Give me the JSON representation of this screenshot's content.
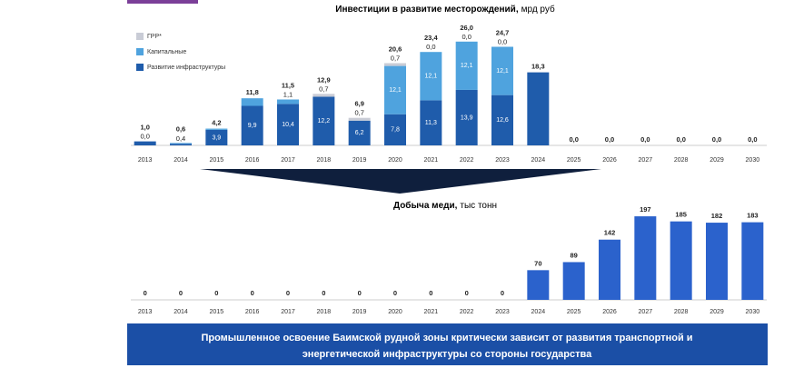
{
  "chart_data": [
    {
      "type": "bar",
      "stacked": true,
      "title": "Инвестиции в развитие  месторождений,",
      "units": "мрд руб",
      "categories": [
        "2013",
        "2014",
        "2015",
        "2016",
        "2017",
        "2018",
        "2019",
        "2020",
        "2021",
        "2022",
        "2023",
        "2024",
        "2025",
        "2026",
        "2027",
        "2028",
        "2029",
        "2030"
      ],
      "ylim": [
        0,
        28
      ],
      "series": [
        {
          "name": "Развитие инфраструктуры",
          "color": "#1f5cab",
          "values": [
            1.0,
            0.4,
            3.9,
            9.9,
            10.4,
            12.2,
            6.2,
            7.8,
            11.3,
            13.9,
            12.6,
            18.3,
            0,
            0,
            0,
            0,
            0,
            0
          ],
          "value_labels": [
            null,
            "0,4",
            "3,9",
            "9,9",
            "10,4",
            "12,2",
            "6,2",
            "7,8",
            "11,3",
            "13,9",
            "12,6",
            null,
            null,
            null,
            null,
            null,
            null,
            null
          ]
        },
        {
          "name": "Капитальные",
          "color": "#4fa3de",
          "values": [
            0,
            0.2,
            0.3,
            1.9,
            1.1,
            0,
            0,
            12.1,
            12.1,
            12.1,
            12.1,
            0,
            0,
            0,
            0,
            0,
            0,
            0
          ],
          "value_labels": [
            null,
            null,
            null,
            null,
            "1,1",
            null,
            null,
            "12,1",
            "12,1",
            "12,1",
            "12,1",
            null,
            null,
            null,
            null,
            null,
            null,
            null
          ]
        },
        {
          "name": "ГРР*",
          "color": "#c9ccd6",
          "values": [
            0,
            0,
            0,
            0,
            0,
            0.7,
            0.7,
            0.7,
            0,
            0,
            0,
            0,
            0,
            0,
            0,
            0,
            0,
            0
          ],
          "value_labels": [
            "0,0",
            null,
            null,
            null,
            null,
            "0,7",
            "0,7",
            "0,7",
            "0,0",
            "0,0",
            "0,0",
            null,
            null,
            null,
            null,
            null,
            null,
            null
          ]
        }
      ],
      "totals": [
        1.0,
        0.6,
        4.2,
        11.8,
        11.5,
        12.9,
        6.9,
        20.6,
        23.4,
        26.0,
        24.7,
        18.3,
        0,
        0,
        0,
        0,
        0,
        0
      ],
      "totals_labels": [
        "1,0",
        "0,6",
        "4,2",
        "11,8",
        "11,5",
        "12,9",
        "6,9",
        "20,6",
        "23,4",
        "26,0",
        "24,7",
        "18,3",
        "0,0",
        "0,0",
        "0,0",
        "0,0",
        "0,0",
        "0,0"
      ],
      "legend": "top-left"
    },
    {
      "type": "bar",
      "title": "Добыча меди,",
      "units": "тыс тонн",
      "categories": [
        "2013",
        "2014",
        "2015",
        "2016",
        "2017",
        "2018",
        "2019",
        "2020",
        "2021",
        "2022",
        "2023",
        "2024",
        "2025",
        "2026",
        "2027",
        "2028",
        "2029",
        "2030"
      ],
      "values": [
        0,
        0,
        0,
        0,
        0,
        0,
        0,
        0,
        0,
        0,
        0,
        70,
        89,
        142,
        197,
        185,
        182,
        183
      ],
      "color": "#2b62cc",
      "ylim": [
        0,
        210
      ]
    }
  ],
  "banner": [
    "Промышленное освоение Баимской рудной зоны критически зависит от развития транспортной и",
    "энергетической инфраструктуры со стороны государства"
  ]
}
